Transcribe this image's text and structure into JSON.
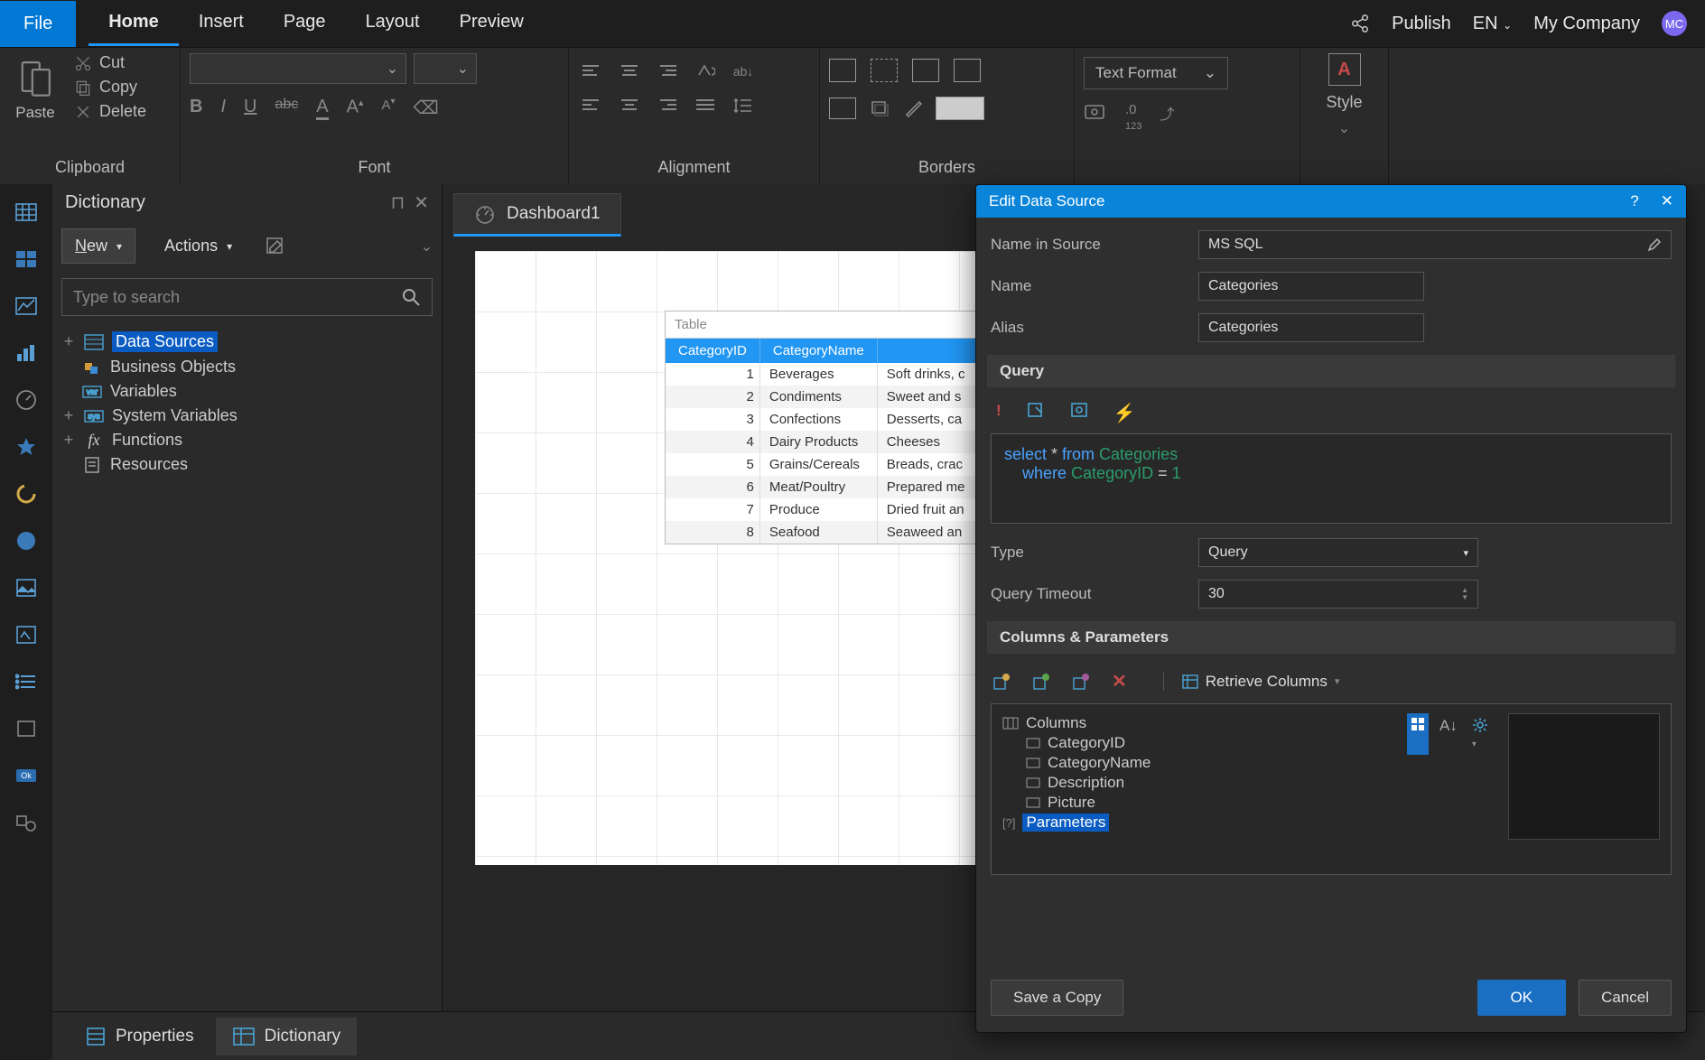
{
  "menubar": {
    "file": "File",
    "tabs": [
      "Home",
      "Insert",
      "Page",
      "Layout",
      "Preview"
    ],
    "active_tab": 0,
    "publish": "Publish",
    "lang": "EN",
    "company": "My Company",
    "avatar": "MC"
  },
  "ribbon": {
    "clipboard": {
      "paste": "Paste",
      "cut": "Cut",
      "copy": "Copy",
      "delete": "Delete",
      "label": "Clipboard"
    },
    "font": {
      "label": "Font"
    },
    "alignment": {
      "label": "Alignment"
    },
    "borders": {
      "label": "Borders"
    },
    "text_format": {
      "btn": "Text Format"
    },
    "style": {
      "label": "Style"
    }
  },
  "dictionary": {
    "title": "Dictionary",
    "new_btn": "ew",
    "new_prefix": "N",
    "actions_btn": "Actions",
    "search_placeholder": "Type to search",
    "tree": {
      "data_sources": "Data Sources",
      "business_objects": "Business Objects",
      "variables": "Variables",
      "system_variables": "System Variables",
      "functions": "Functions",
      "resources": "Resources"
    }
  },
  "document": {
    "tab_label": "Dashboard1",
    "table": {
      "title": "Table",
      "columns": [
        "CategoryID",
        "CategoryName",
        ""
      ],
      "rows": [
        [
          "1",
          "Beverages",
          "Soft drinks, c"
        ],
        [
          "2",
          "Condiments",
          "Sweet and s"
        ],
        [
          "3",
          "Confections",
          "Desserts, ca"
        ],
        [
          "4",
          "Dairy Products",
          "Cheeses"
        ],
        [
          "5",
          "Grains/Cereals",
          "Breads, crac"
        ],
        [
          "6",
          "Meat/Poultry",
          "Prepared me"
        ],
        [
          "7",
          "Produce",
          "Dried fruit an"
        ],
        [
          "8",
          "Seafood",
          "Seaweed an"
        ]
      ]
    }
  },
  "bottom_tabs": {
    "properties": "Properties",
    "dictionary": "Dictionary"
  },
  "modal": {
    "title": "Edit Data Source",
    "name_in_source_lbl": "Name in Source",
    "name_in_source_val": "MS SQL",
    "name_lbl": "Name",
    "name_val": "Categories",
    "alias_lbl": "Alias",
    "alias_val": "Categories",
    "query_section": "Query",
    "sql": {
      "text": "select * from Categories\n    where CategoryID = 1",
      "kw_select": "select",
      "star": " * ",
      "kw_from": "from",
      "ident1": " Categories",
      "line2_pad": "    ",
      "kw_where": "where",
      "ident2": " CategoryID ",
      "eq": "= ",
      "val": "1"
    },
    "type_lbl": "Type",
    "type_val": "Query",
    "timeout_lbl": "Query Timeout",
    "timeout_val": "30",
    "cols_section": "Columns & Parameters",
    "retrieve": "Retrieve Columns",
    "cols_root": "Columns",
    "cols": [
      "CategoryID",
      "CategoryName",
      "Description",
      "Picture"
    ],
    "params": "Parameters",
    "save_copy": "Save a Copy",
    "ok": "OK",
    "cancel": "Cancel"
  }
}
